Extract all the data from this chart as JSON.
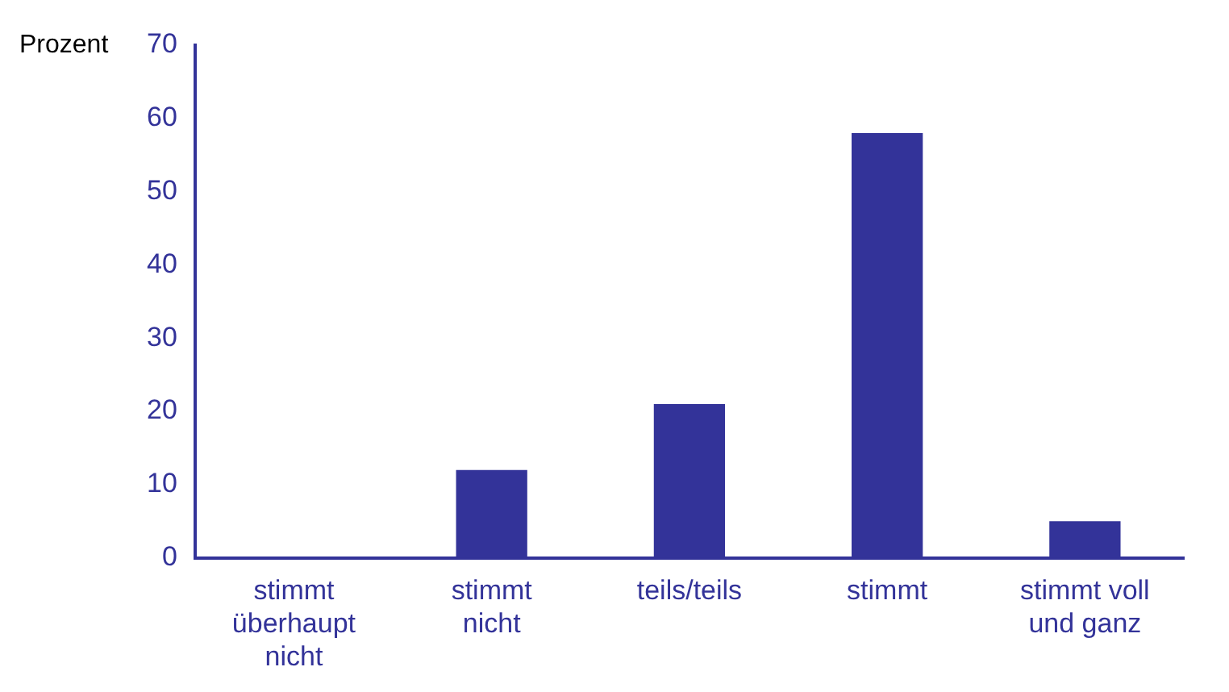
{
  "chart_data": {
    "type": "bar",
    "ylabel": "Prozent",
    "categories": [
      "stimmt überhaupt nicht",
      "stimmt nicht",
      "teils/teils",
      "stimmt",
      "stimmt voll und ganz"
    ],
    "values": [
      0,
      12,
      21,
      58,
      5
    ],
    "color": "#333399",
    "ylim": [
      0,
      70
    ],
    "yticks": [
      0,
      10,
      20,
      30,
      40,
      50,
      60,
      70
    ],
    "grid": false,
    "legend": false
  }
}
